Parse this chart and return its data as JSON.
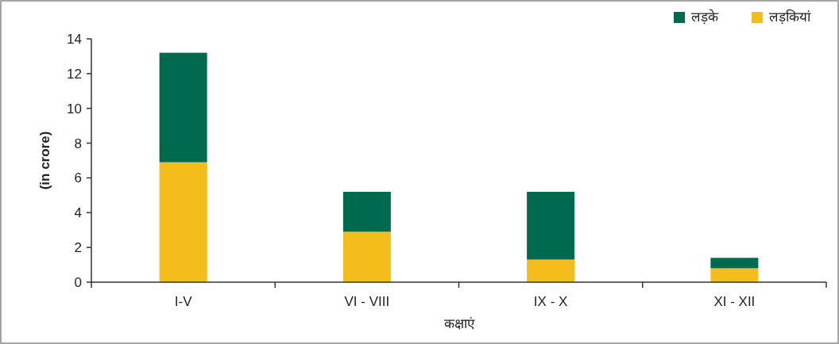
{
  "chart_data": {
    "type": "bar",
    "stacked": true,
    "xlabel": "कक्षाएं",
    "ylabel": "(in crore)",
    "categories": [
      "I-V",
      "VI - VIII",
      "IX - X",
      "XI - XII"
    ],
    "series": [
      {
        "name": "लड़कियां",
        "color": "#f5bd1b",
        "values": [
          6.9,
          2.9,
          1.3,
          0.8
        ]
      },
      {
        "name": "लड़के",
        "color": "#006a4e",
        "values": [
          6.3,
          2.3,
          3.9,
          0.6
        ]
      }
    ],
    "ylim": [
      0,
      14
    ],
    "yticks": [
      0,
      2,
      4,
      6,
      8,
      10,
      12,
      14
    ],
    "grid": false,
    "legend": "top right"
  }
}
